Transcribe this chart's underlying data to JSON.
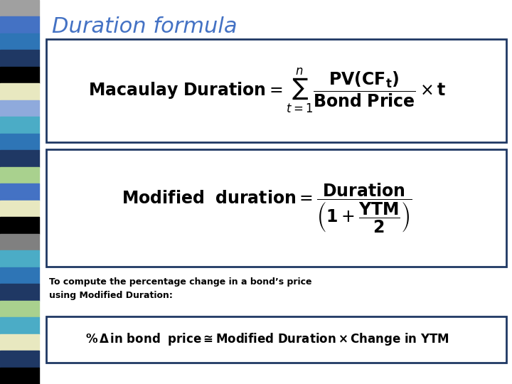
{
  "title": "Duration formula",
  "title_color": "#4472C4",
  "title_fontsize": 22,
  "bg_color": "#FFFFFF",
  "box_border_color": "#1F3864",
  "sidebar_colors": [
    "#A0A0A0",
    "#4472C4",
    "#2E75B6",
    "#1F3864",
    "#000000",
    "#E8E8C0",
    "#8FAADC",
    "#4BACC6",
    "#2E75B6",
    "#1F3864",
    "#A9D18E",
    "#4472C4",
    "#E8E8C0",
    "#000000",
    "#808080",
    "#4BACC6",
    "#2E75B6",
    "#1F3864",
    "#A9D18E",
    "#4BACC6",
    "#E8E8C0",
    "#1F3864",
    "#000000"
  ],
  "caption": "To compute the percentage change in a bond’s price\nusing Modified Duration:"
}
